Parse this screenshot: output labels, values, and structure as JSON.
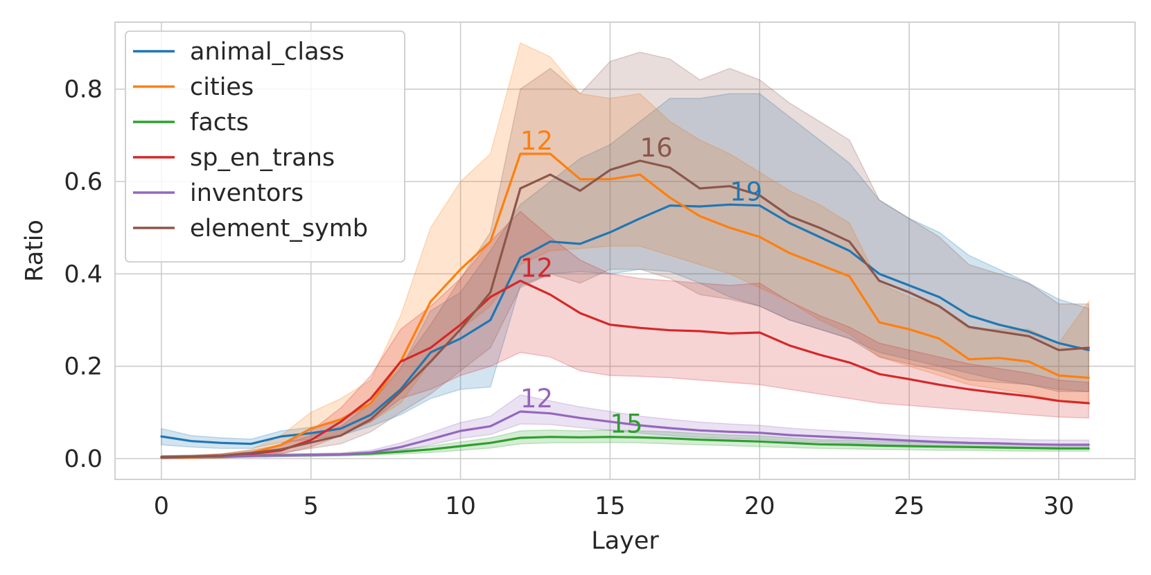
{
  "chart_data": {
    "type": "line",
    "title": "",
    "xlabel": "Layer",
    "ylabel": "Ratio",
    "xlim": [
      -1.55,
      32.55
    ],
    "ylim": [
      -0.045,
      0.945
    ],
    "xticks": [
      0,
      5,
      10,
      15,
      20,
      25,
      30
    ],
    "xtick_labels": [
      "0",
      "5",
      "10",
      "15",
      "20",
      "25",
      "30"
    ],
    "yticks": [
      0.0,
      0.2,
      0.4,
      0.6,
      0.8
    ],
    "ytick_labels": [
      "0.0",
      "0.2",
      "0.4",
      "0.6",
      "0.8"
    ],
    "grid": true,
    "legend_position": "top-left",
    "x": [
      0,
      1,
      2,
      3,
      4,
      5,
      6,
      7,
      8,
      9,
      10,
      11,
      12,
      13,
      14,
      15,
      16,
      17,
      18,
      19,
      20,
      21,
      22,
      23,
      24,
      25,
      26,
      27,
      28,
      29,
      30,
      31
    ],
    "series": [
      {
        "name": "animal_class",
        "color": "#1f77b4",
        "values": [
          0.048,
          0.038,
          0.034,
          0.032,
          0.048,
          0.055,
          0.065,
          0.095,
          0.15,
          0.23,
          0.26,
          0.3,
          0.435,
          0.47,
          0.465,
          0.49,
          0.52,
          0.548,
          0.546,
          0.55,
          0.548,
          0.51,
          0.48,
          0.45,
          0.4,
          0.375,
          0.35,
          0.31,
          0.29,
          0.275,
          0.25,
          0.235
        ],
        "lower": [
          0.03,
          0.025,
          0.022,
          0.022,
          0.035,
          0.042,
          0.05,
          0.07,
          0.095,
          0.13,
          0.15,
          0.155,
          0.375,
          0.4,
          0.405,
          0.4,
          0.41,
          0.405,
          0.38,
          0.35,
          0.33,
          0.3,
          0.28,
          0.26,
          0.23,
          0.215,
          0.2,
          0.185,
          0.17,
          0.16,
          0.15,
          0.145
        ],
        "upper": [
          0.065,
          0.05,
          0.045,
          0.042,
          0.06,
          0.068,
          0.08,
          0.12,
          0.195,
          0.32,
          0.36,
          0.45,
          0.55,
          0.6,
          0.65,
          0.68,
          0.73,
          0.78,
          0.78,
          0.79,
          0.79,
          0.74,
          0.69,
          0.64,
          0.56,
          0.52,
          0.49,
          0.44,
          0.41,
          0.38,
          0.345,
          0.325
        ],
        "peak_layer": 19,
        "peak_label": "19"
      },
      {
        "name": "cities",
        "color": "#ff7f0e",
        "values": [
          0.003,
          0.003,
          0.005,
          0.012,
          0.03,
          0.065,
          0.085,
          0.12,
          0.21,
          0.34,
          0.41,
          0.47,
          0.66,
          0.66,
          0.605,
          0.605,
          0.615,
          0.565,
          0.525,
          0.5,
          0.48,
          0.445,
          0.42,
          0.395,
          0.295,
          0.28,
          0.26,
          0.215,
          0.218,
          0.21,
          0.18,
          0.175
        ],
        "lower": [
          0.0,
          0.0,
          0.001,
          0.005,
          0.015,
          0.04,
          0.055,
          0.08,
          0.12,
          0.21,
          0.28,
          0.33,
          0.42,
          0.45,
          0.455,
          0.46,
          0.46,
          0.44,
          0.42,
          0.4,
          0.37,
          0.34,
          0.3,
          0.27,
          0.22,
          0.2,
          0.18,
          0.16,
          0.15,
          0.14,
          0.125,
          0.12
        ],
        "upper": [
          0.006,
          0.006,
          0.01,
          0.02,
          0.05,
          0.1,
          0.13,
          0.17,
          0.31,
          0.5,
          0.6,
          0.66,
          0.9,
          0.87,
          0.79,
          0.78,
          0.79,
          0.73,
          0.69,
          0.66,
          0.62,
          0.58,
          0.55,
          0.51,
          0.38,
          0.35,
          0.33,
          0.28,
          0.28,
          0.28,
          0.25,
          0.34
        ],
        "peak_layer": 12,
        "peak_label": "12"
      },
      {
        "name": "facts",
        "color": "#2ca02c",
        "values": [
          0.003,
          0.004,
          0.005,
          0.006,
          0.007,
          0.008,
          0.009,
          0.011,
          0.015,
          0.02,
          0.027,
          0.034,
          0.045,
          0.047,
          0.046,
          0.047,
          0.046,
          0.044,
          0.041,
          0.039,
          0.037,
          0.034,
          0.031,
          0.03,
          0.028,
          0.027,
          0.026,
          0.025,
          0.024,
          0.023,
          0.022,
          0.022
        ],
        "lower": [
          0.0,
          0.001,
          0.002,
          0.003,
          0.004,
          0.005,
          0.006,
          0.007,
          0.01,
          0.013,
          0.018,
          0.023,
          0.032,
          0.034,
          0.034,
          0.035,
          0.034,
          0.032,
          0.03,
          0.028,
          0.026,
          0.024,
          0.022,
          0.021,
          0.02,
          0.019,
          0.018,
          0.018,
          0.017,
          0.016,
          0.016,
          0.016
        ],
        "upper": [
          0.006,
          0.007,
          0.008,
          0.009,
          0.01,
          0.011,
          0.012,
          0.015,
          0.02,
          0.027,
          0.036,
          0.045,
          0.06,
          0.062,
          0.06,
          0.062,
          0.06,
          0.058,
          0.054,
          0.051,
          0.049,
          0.045,
          0.041,
          0.04,
          0.037,
          0.036,
          0.035,
          0.033,
          0.032,
          0.031,
          0.03,
          0.03
        ],
        "peak_layer": 15,
        "peak_label": "15"
      },
      {
        "name": "sp_en_trans",
        "color": "#d62728",
        "values": [
          0.003,
          0.004,
          0.006,
          0.01,
          0.018,
          0.04,
          0.08,
          0.13,
          0.21,
          0.24,
          0.29,
          0.35,
          0.385,
          0.355,
          0.315,
          0.29,
          0.283,
          0.278,
          0.276,
          0.271,
          0.273,
          0.245,
          0.225,
          0.208,
          0.183,
          0.172,
          0.16,
          0.15,
          0.142,
          0.135,
          0.125,
          0.12
        ],
        "lower": [
          0.0,
          0.001,
          0.002,
          0.005,
          0.01,
          0.025,
          0.05,
          0.08,
          0.13,
          0.15,
          0.18,
          0.2,
          0.23,
          0.22,
          0.19,
          0.18,
          0.178,
          0.175,
          0.17,
          0.165,
          0.16,
          0.15,
          0.14,
          0.13,
          0.12,
          0.115,
          0.11,
          0.105,
          0.1,
          0.095,
          0.09,
          0.088
        ],
        "upper": [
          0.006,
          0.007,
          0.01,
          0.015,
          0.028,
          0.06,
          0.11,
          0.18,
          0.28,
          0.33,
          0.39,
          0.47,
          0.535,
          0.48,
          0.43,
          0.4,
          0.39,
          0.385,
          0.38,
          0.375,
          0.38,
          0.34,
          0.31,
          0.285,
          0.25,
          0.235,
          0.22,
          0.205,
          0.195,
          0.185,
          0.17,
          0.165
        ],
        "peak_layer": 12,
        "peak_label": "12"
      },
      {
        "name": "inventors",
        "color": "#9467bd",
        "values": [
          0.003,
          0.004,
          0.005,
          0.006,
          0.007,
          0.008,
          0.009,
          0.013,
          0.025,
          0.042,
          0.06,
          0.07,
          0.102,
          0.098,
          0.088,
          0.08,
          0.072,
          0.066,
          0.061,
          0.058,
          0.056,
          0.051,
          0.048,
          0.045,
          0.042,
          0.039,
          0.036,
          0.034,
          0.033,
          0.031,
          0.03,
          0.03
        ],
        "lower": [
          0.0,
          0.001,
          0.002,
          0.003,
          0.004,
          0.005,
          0.006,
          0.009,
          0.017,
          0.03,
          0.044,
          0.052,
          0.075,
          0.074,
          0.067,
          0.061,
          0.055,
          0.05,
          0.046,
          0.044,
          0.042,
          0.038,
          0.036,
          0.034,
          0.031,
          0.029,
          0.027,
          0.025,
          0.024,
          0.023,
          0.022,
          0.022
        ],
        "upper": [
          0.006,
          0.007,
          0.008,
          0.009,
          0.01,
          0.011,
          0.012,
          0.018,
          0.034,
          0.056,
          0.078,
          0.092,
          0.138,
          0.125,
          0.112,
          0.102,
          0.092,
          0.085,
          0.079,
          0.075,
          0.072,
          0.066,
          0.062,
          0.058,
          0.054,
          0.05,
          0.047,
          0.045,
          0.043,
          0.041,
          0.04,
          0.04
        ],
        "peak_layer": 12,
        "peak_label": "12"
      },
      {
        "name": "element_symb",
        "color": "#8c564b",
        "values": [
          0.003,
          0.004,
          0.006,
          0.012,
          0.02,
          0.035,
          0.05,
          0.085,
          0.145,
          0.21,
          0.28,
          0.36,
          0.585,
          0.615,
          0.58,
          0.625,
          0.645,
          0.63,
          0.585,
          0.59,
          0.57,
          0.525,
          0.5,
          0.47,
          0.385,
          0.36,
          0.33,
          0.285,
          0.275,
          0.265,
          0.235,
          0.24
        ],
        "lower": [
          0.0,
          0.001,
          0.002,
          0.006,
          0.012,
          0.022,
          0.032,
          0.058,
          0.1,
          0.14,
          0.19,
          0.24,
          0.37,
          0.4,
          0.38,
          0.41,
          0.41,
          0.39,
          0.355,
          0.345,
          0.33,
          0.3,
          0.28,
          0.26,
          0.22,
          0.205,
          0.19,
          0.17,
          0.165,
          0.16,
          0.145,
          0.145
        ],
        "upper": [
          0.006,
          0.007,
          0.01,
          0.018,
          0.03,
          0.05,
          0.07,
          0.12,
          0.2,
          0.29,
          0.39,
          0.49,
          0.8,
          0.845,
          0.79,
          0.86,
          0.88,
          0.865,
          0.82,
          0.845,
          0.82,
          0.77,
          0.73,
          0.69,
          0.56,
          0.52,
          0.48,
          0.42,
          0.4,
          0.38,
          0.335,
          0.335
        ],
        "peak_layer": 16,
        "peak_label": "16"
      }
    ]
  }
}
